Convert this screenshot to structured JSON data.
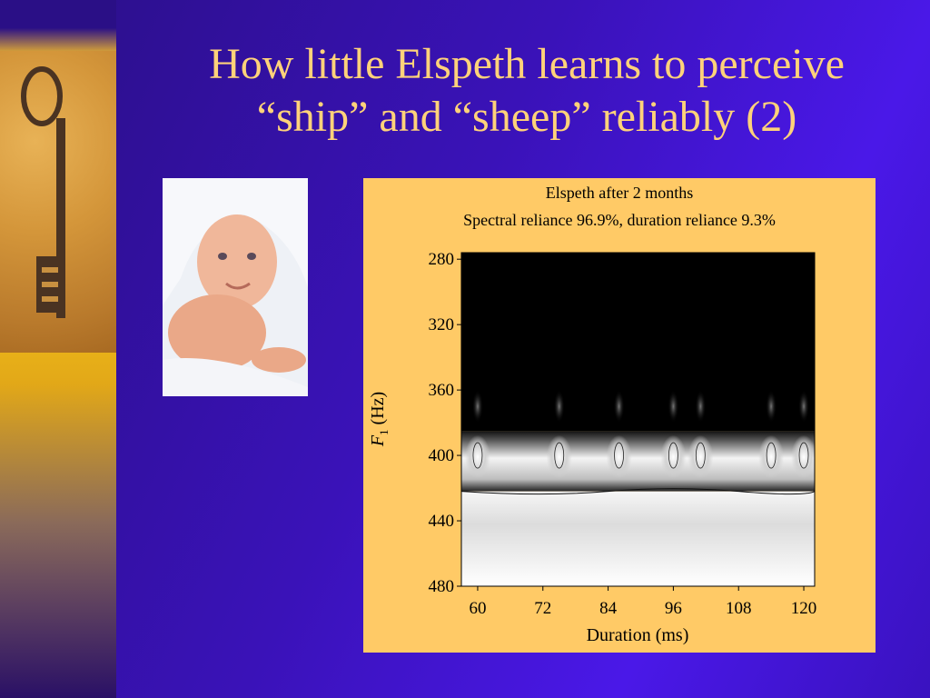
{
  "slide": {
    "title_line1": "How little Elspeth learns to perceive",
    "title_line2": "“ship” and “sheep” reliably (2)"
  },
  "chart_data": {
    "type": "heatmap",
    "title": "Elspeth after 2 months",
    "subtitle": "Spectral reliance 96.9%, duration reliance 9.3%",
    "xlabel": "Duration (ms)",
    "ylabel_main": "F",
    "ylabel_sub": "1",
    "ylabel_unit": " (Hz)",
    "xlim": [
      57,
      122
    ],
    "ylim": [
      480,
      276
    ],
    "xticks": [
      60,
      72,
      84,
      96,
      108,
      120
    ],
    "yticks": [
      280,
      320,
      360,
      400,
      440,
      480
    ],
    "y_reversed": true,
    "colormap": "grayscale: black to white",
    "regions": [
      {
        "name": "dark region",
        "y_from": 276,
        "y_to": 385,
        "shade": "black"
      },
      {
        "name": "transition band",
        "y_from": 385,
        "y_to": 422,
        "shade": "white"
      },
      {
        "name": "light region",
        "y_from": 422,
        "y_to": 480,
        "shade": "white"
      }
    ],
    "boundary_f1": 422,
    "bright_spots_x": [
      60,
      75,
      86,
      96,
      101,
      114,
      120
    ]
  }
}
